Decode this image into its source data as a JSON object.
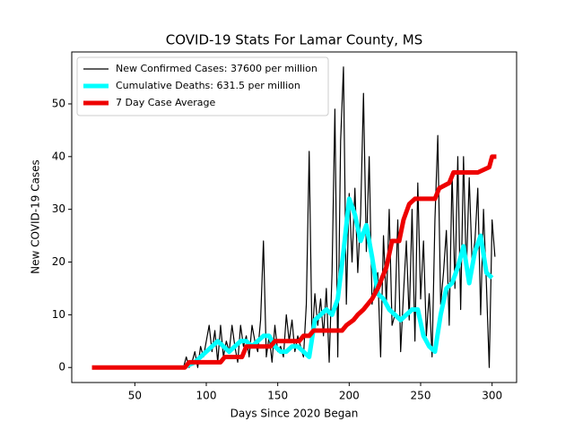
{
  "chart_data": {
    "type": "line",
    "title": "COVID-19 Stats For Lamar County, MS",
    "x_label": "Days Since 2020 Began",
    "y_label": "New COVID-19 Cases",
    "xlim": [
      5.85,
      317.15
    ],
    "xticks": [
      50,
      100,
      150,
      200,
      250,
      300
    ],
    "ylim": [
      -2.85,
      59.85
    ],
    "yticks": [
      0,
      10,
      20,
      30,
      40,
      50
    ],
    "legend": "upper left",
    "series": [
      {
        "name": "New Confirmed Cases: 37600 per million",
        "color": "#000000",
        "width": 1.2,
        "x": [
          84,
          86,
          88,
          90,
          92,
          94,
          96,
          98,
          100,
          102,
          104,
          106,
          108,
          110,
          112,
          114,
          116,
          118,
          120,
          122,
          124,
          126,
          128,
          130,
          132,
          134,
          136,
          138,
          140,
          142,
          144,
          146,
          148,
          150,
          152,
          154,
          156,
          158,
          160,
          162,
          164,
          166,
          168,
          170,
          172,
          174,
          176,
          178,
          180,
          182,
          184,
          186,
          188,
          190,
          192,
          194,
          196,
          198,
          200,
          202,
          204,
          206,
          208,
          210,
          212,
          214,
          216,
          218,
          220,
          222,
          224,
          226,
          228,
          230,
          232,
          234,
          236,
          238,
          240,
          242,
          244,
          246,
          248,
          250,
          252,
          254,
          256,
          258,
          260,
          262,
          264,
          266,
          268,
          270,
          272,
          274,
          276,
          278,
          280,
          282,
          284,
          286,
          288,
          290,
          292,
          294,
          296,
          298,
          300,
          302
        ],
        "values": [
          0,
          2,
          0,
          1,
          3,
          0,
          4,
          2,
          5,
          8,
          3,
          7,
          1,
          8,
          2,
          5,
          3,
          8,
          4,
          1,
          8,
          4,
          6,
          2,
          8,
          5,
          3,
          9,
          24,
          2,
          6,
          1,
          8,
          3,
          4,
          2,
          10,
          5,
          9,
          3,
          6,
          4,
          2,
          12,
          41,
          5,
          14,
          8,
          13,
          6,
          15,
          1,
          18,
          49,
          2,
          43,
          57,
          12,
          33,
          20,
          34,
          18,
          29,
          52,
          22,
          40,
          12,
          16,
          18,
          2,
          25,
          12,
          30,
          8,
          10,
          28,
          3,
          14,
          24,
          9,
          30,
          5,
          35,
          13,
          24,
          6,
          14,
          2,
          28,
          44,
          12,
          18,
          26,
          8,
          37,
          15,
          40,
          11,
          40,
          18,
          36,
          20,
          24,
          34,
          10,
          30,
          16,
          0,
          28,
          21
        ]
      },
      {
        "name": "Cumulative Deaths: 631.5 per million",
        "color": "#00ffff",
        "width": 5,
        "x": [
          84,
          88,
          92,
          96,
          100,
          104,
          108,
          112,
          116,
          120,
          124,
          128,
          132,
          136,
          140,
          144,
          148,
          152,
          156,
          160,
          164,
          168,
          172,
          176,
          180,
          184,
          188,
          192,
          196,
          200,
          204,
          208,
          212,
          216,
          220,
          224,
          228,
          232,
          236,
          240,
          244,
          248,
          252,
          256,
          260,
          264,
          268,
          272,
          276,
          280,
          284,
          288,
          292,
          296,
          300
        ],
        "values": [
          0,
          0.5,
          1,
          2,
          3,
          4,
          5,
          4,
          3,
          4,
          5,
          5,
          4,
          5,
          6,
          6,
          4,
          3,
          3,
          4,
          4,
          3,
          2,
          9,
          10,
          11,
          10,
          13,
          22,
          32,
          29,
          24,
          27,
          21,
          14,
          13,
          11,
          10,
          9,
          10,
          11,
          11,
          6,
          4,
          3,
          10,
          15,
          16,
          19,
          23,
          16,
          22,
          25,
          18,
          17
        ]
      },
      {
        "name": "7 Day Case Average",
        "color": "#ee0000",
        "width": 5,
        "x": [
          20,
          85,
          88,
          95,
          110,
          113,
          125,
          128,
          145,
          148,
          165,
          168,
          172,
          175,
          195,
          198,
          203,
          206,
          210,
          213,
          216,
          220,
          223,
          226,
          230,
          235,
          238,
          242,
          246,
          260,
          263,
          270,
          273,
          290,
          298,
          300,
          303
        ],
        "values": [
          0,
          0,
          1,
          1,
          1,
          2,
          2,
          4,
          4,
          5,
          5,
          6,
          6,
          7,
          7,
          8,
          9,
          10,
          11,
          12,
          13,
          15,
          17,
          19,
          24,
          24,
          28,
          31,
          32,
          32,
          34,
          35,
          37,
          37,
          38,
          40,
          40
        ]
      }
    ]
  }
}
